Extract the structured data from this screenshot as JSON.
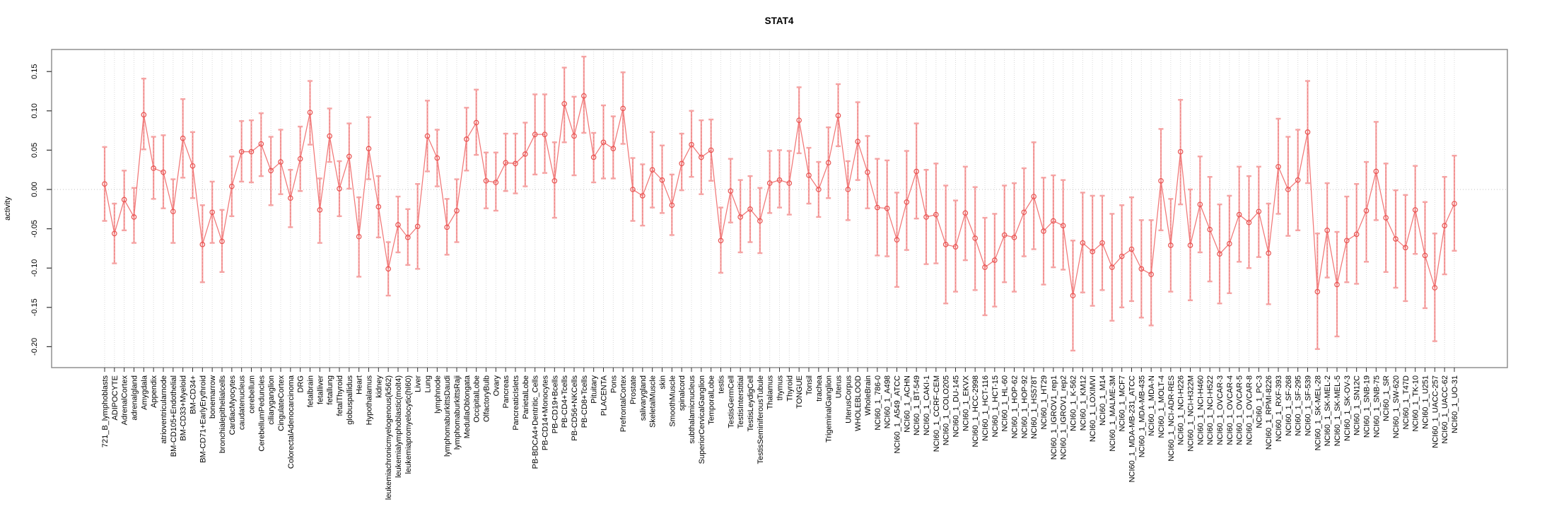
{
  "title": "STAT4",
  "chart_data": {
    "type": "line",
    "title": "STAT4",
    "xlabel": "",
    "ylabel": "activity",
    "ylim": [
      -0.22,
      0.17
    ],
    "yticks": [
      0.15,
      0.1,
      0.05,
      0.0,
      -0.05,
      -0.1,
      -0.15,
      -0.2
    ],
    "grid": "vertical-dotted-per-category",
    "zero_line": true,
    "legend": "none",
    "series_style": "open-circle-points-with-error-bars-connected",
    "colors": {
      "point": "#e8514f",
      "line": "#f07070",
      "error_bar": "#f5a3a3",
      "error_stem": "#ee8080",
      "grid": "#d9d9d9",
      "zero_line": "#c0c0c0",
      "box": "#888888",
      "tick": "#333333"
    },
    "categories": [
      "721_B_lymphoblasts",
      "ADIPOCYTE",
      "AdrenalCortex",
      "adrenalgland",
      "Amygdala",
      "Appendix",
      "atrioventricularnode",
      "BM-CD105+Endothelial",
      "BM-CD33+Myeloid",
      "BM-CD34+",
      "BM-CD71+EarlyErythroid",
      "bonemarrow",
      "bronchialepithelialcells",
      "CardiacMyocytes",
      "caudatenucleus",
      "cerebellum",
      "CerebellumPeduncles",
      "ciliaryganglion",
      "CingulateCortex",
      "ColorectalAdenocarcinoma",
      "DRG",
      "fetalbrain",
      "fetalliver",
      "fetallung",
      "fetalThyroid",
      "globuspallidus",
      "Heart",
      "Hypothalamus",
      "kidney",
      "leukemiachronicmyelogenous(k562)",
      "leukemialymphoblastic(molt4)",
      "leukemiapromyelocytic(hl60)",
      "Liver",
      "Lung",
      "lymphnode",
      "lymphomaburkittsDaudi",
      "lymphomaburkittsRaji",
      "MedullaOblongata",
      "OccipitalLobe",
      "OlfactoryBulb",
      "Ovary",
      "Pancreas",
      "PancreaticIslets",
      "ParietalLobe",
      "PB-BDCA4+Dentritic_Cells",
      "PB-CD14+Monocytes",
      "PB-CD19+Bcells",
      "PB-CD4+Tcells",
      "PB-CD56+NKCells",
      "PB-CD8+Tcells",
      "Pituitary",
      "PLACENTA",
      "Pons",
      "PrefrontalCortex",
      "Prostate",
      "salivarygland",
      "SkeletalMuscle",
      "skin",
      "SmoothMuscle",
      "spinalcord",
      "subthalamicnucleus",
      "SuperiorCervicalGanglion",
      "TemporalLobe",
      "testis",
      "TestisGermCell",
      "TestisInterstitial",
      "TestisLeydigCell",
      "TestisSeminiferousTubule",
      "Thalamus",
      "thymus",
      "Thyroid",
      "TONGUE",
      "Tonsil",
      "trachea",
      "TrigeminalGanglion",
      "Uterus",
      "UterusCorpus",
      "WHOLEBLOOD",
      "WholeBrain",
      "NCI60_1_786-0",
      "NCI60_1_A498",
      "NCI60_1_A549_ATCC",
      "NCI60_1_ACHN",
      "NCI60_1_BT-549",
      "NCI60_1_CAKI-1",
      "NCI60_1_CCRF-CEM",
      "NCI60_1_COLO205",
      "NCI60_1_DU-145",
      "NCI60_1_EKVX",
      "NCI60_1_HCC-2998",
      "NCI60_1_HCT-116",
      "NCI60_1_HCT-15",
      "NCI60_1_HL-60",
      "NCI60_1_HOP-62",
      "NCI60_1_HOP-92",
      "NCI60_1_HS578T",
      "NCI60_1_HT29",
      "NCI60_1_IGROV1_rep1",
      "NCI60_1_IGROV1_rep2",
      "NCI60_1_K-562",
      "NCI60_1_KM12",
      "NCI60_1_LOXIMVI",
      "NCI60_1_M14",
      "NCI60_1_MALME-3M",
      "NCI60_1_MCF7",
      "NCI60_1_MDA-MB-231_ATCC",
      "NCI60_1_MDA-MB-435",
      "NCI60_1_MDA-N",
      "NCI60_1_MOLT-4",
      "NCI60_1_NCI-ADR-RES",
      "NCI60_1_NCI-H226",
      "NCI60_1_NCI-H322M",
      "NCI60_1_NCI-H460",
      "NCI60_1_NCI-H522",
      "NCI60_1_OVCAR-3",
      "NCI60_1_OVCAR-4",
      "NCI60_1_OVCAR-5",
      "NCI60_1_OVCAR-8",
      "NCI60_1_PC-3",
      "NCI60_1_RPMI-8226",
      "NCI60_1_RXF-393",
      "NCI60_1_SF-268",
      "NCI60_1_SF-295",
      "NCI60_1_SF-539",
      "NCI60_1_SK-MEL-28",
      "NCI60_1_SK-MEL-2",
      "NCI60_1_SK-MEL-5",
      "NCI60_1_SK-OV-3",
      "NCI60_1_SN12C",
      "NCI60_1_SNB-19",
      "NCI60_1_SNB-75",
      "NCI60_1_SR",
      "NCI60_1_SW-620",
      "NCI60_1_T47D",
      "NCI60_1_TK-10",
      "NCI60_1_U251",
      "NCI60_1_UACC-257",
      "NCI60_1_UACC-62",
      "NCI60_1_UO-31"
    ],
    "values": [
      0.007,
      -0.056,
      -0.013,
      -0.035,
      0.095,
      0.027,
      0.022,
      -0.028,
      0.065,
      0.03,
      -0.07,
      -0.029,
      -0.066,
      0.004,
      0.048,
      0.048,
      0.058,
      0.024,
      0.035,
      -0.011,
      0.039,
      0.098,
      -0.026,
      0.068,
      0.001,
      0.042,
      -0.06,
      0.052,
      -0.022,
      -0.101,
      -0.045,
      -0.061,
      -0.047,
      0.068,
      0.04,
      -0.048,
      -0.027,
      0.064,
      0.085,
      0.011,
      0.009,
      0.034,
      0.033,
      0.045,
      0.07,
      0.07,
      0.011,
      0.109,
      0.068,
      0.119,
      0.041,
      0.06,
      0.052,
      0.103,
      0.0,
      -0.008,
      0.025,
      0.012,
      -0.02,
      0.033,
      0.057,
      0.041,
      0.05,
      -0.065,
      -0.002,
      -0.035,
      -0.025,
      -0.04,
      0.008,
      0.012,
      0.008,
      0.088,
      0.018,
      0.0,
      0.034,
      0.094,
      0.0,
      0.061,
      0.022,
      -0.023,
      -0.024,
      -0.064,
      -0.016,
      0.023,
      -0.035,
      -0.032,
      -0.07,
      -0.073,
      -0.03,
      -0.062,
      -0.099,
      -0.09,
      -0.058,
      -0.061,
      -0.029,
      -0.009,
      -0.053,
      -0.04,
      -0.046,
      -0.135,
      -0.068,
      -0.079,
      -0.068,
      -0.099,
      -0.085,
      -0.076,
      -0.101,
      -0.108,
      0.011,
      -0.071,
      0.048,
      -0.071,
      -0.019,
      -0.051,
      -0.082,
      -0.069,
      -0.032,
      -0.042,
      -0.028,
      -0.081,
      0.029,
      0.0,
      0.012,
      0.073,
      -0.13,
      -0.052,
      -0.121,
      -0.065,
      -0.057,
      -0.027,
      0.023,
      -0.036,
      -0.063,
      -0.074,
      -0.026,
      -0.084,
      -0.125,
      -0.046,
      -0.018
    ],
    "ci_high": [
      0.054,
      -0.018,
      0.024,
      0.002,
      0.141,
      0.067,
      0.069,
      0.013,
      0.115,
      0.073,
      -0.02,
      0.01,
      -0.026,
      0.042,
      0.087,
      0.088,
      0.097,
      0.067,
      0.076,
      0.025,
      0.08,
      0.138,
      0.014,
      0.103,
      0.036,
      0.084,
      -0.01,
      0.092,
      0.017,
      -0.067,
      -0.009,
      -0.025,
      0.007,
      0.113,
      0.076,
      -0.012,
      0.013,
      0.104,
      0.127,
      0.047,
      0.047,
      0.071,
      0.071,
      0.085,
      0.121,
      0.121,
      0.06,
      0.155,
      0.118,
      0.169,
      0.072,
      0.107,
      0.093,
      0.149,
      0.04,
      0.032,
      0.073,
      0.056,
      0.019,
      0.071,
      0.1,
      0.088,
      0.089,
      -0.023,
      0.039,
      0.012,
      0.017,
      0.002,
      0.049,
      0.05,
      0.049,
      0.13,
      0.053,
      0.035,
      0.079,
      0.134,
      0.036,
      0.111,
      0.068,
      0.039,
      0.037,
      -0.004,
      0.049,
      0.084,
      0.025,
      0.033,
      0.005,
      -0.014,
      0.029,
      0.003,
      -0.036,
      -0.031,
      0.005,
      0.008,
      0.027,
      0.06,
      0.015,
      0.018,
      0.012,
      -0.065,
      -0.004,
      -0.008,
      -0.008,
      -0.031,
      -0.02,
      -0.01,
      -0.039,
      -0.039,
      0.077,
      -0.012,
      0.114,
      0.0,
      0.042,
      0.016,
      -0.019,
      -0.008,
      0.029,
      0.017,
      0.029,
      -0.018,
      0.09,
      0.067,
      0.076,
      0.138,
      -0.056,
      0.008,
      -0.054,
      -0.009,
      0.007,
      0.035,
      0.086,
      0.033,
      -0.001,
      -0.007,
      0.03,
      -0.016,
      -0.056,
      0.016,
      0.043
    ],
    "ci_low": [
      -0.04,
      -0.094,
      -0.052,
      -0.068,
      0.051,
      -0.012,
      -0.024,
      -0.068,
      0.015,
      -0.011,
      -0.118,
      -0.068,
      -0.105,
      -0.034,
      0.01,
      0.009,
      0.017,
      -0.02,
      -0.006,
      -0.048,
      -0.002,
      0.057,
      -0.068,
      0.035,
      -0.034,
      0.001,
      -0.111,
      0.013,
      -0.061,
      -0.135,
      -0.08,
      -0.096,
      -0.101,
      0.023,
      0.004,
      -0.083,
      -0.067,
      0.024,
      0.044,
      -0.024,
      -0.027,
      -0.002,
      -0.005,
      0.004,
      0.019,
      0.021,
      -0.036,
      0.06,
      0.018,
      0.072,
      0.009,
      0.014,
      0.014,
      0.058,
      -0.04,
      -0.046,
      -0.023,
      -0.03,
      -0.058,
      -0.001,
      0.016,
      -0.006,
      0.011,
      -0.106,
      -0.042,
      -0.08,
      -0.067,
      -0.081,
      -0.03,
      -0.023,
      -0.032,
      0.046,
      -0.018,
      -0.035,
      -0.011,
      0.055,
      -0.039,
      0.012,
      -0.024,
      -0.084,
      -0.085,
      -0.124,
      -0.077,
      -0.037,
      -0.095,
      -0.094,
      -0.145,
      -0.13,
      -0.09,
      -0.128,
      -0.16,
      -0.149,
      -0.118,
      -0.13,
      -0.085,
      -0.076,
      -0.121,
      -0.099,
      -0.102,
      -0.205,
      -0.131,
      -0.148,
      -0.128,
      -0.167,
      -0.15,
      -0.142,
      -0.163,
      -0.173,
      -0.052,
      -0.13,
      -0.019,
      -0.141,
      -0.08,
      -0.117,
      -0.145,
      -0.132,
      -0.092,
      -0.1,
      -0.086,
      -0.146,
      -0.031,
      -0.059,
      -0.052,
      0.008,
      -0.203,
      -0.112,
      -0.187,
      -0.118,
      -0.12,
      -0.092,
      -0.039,
      -0.105,
      -0.125,
      -0.142,
      -0.082,
      -0.151,
      -0.193,
      -0.108,
      -0.078
    ]
  }
}
